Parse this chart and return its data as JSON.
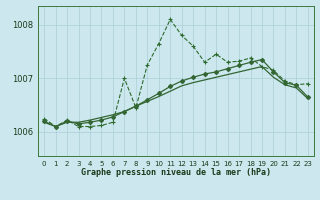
{
  "title": "Graphe pression niveau de la mer (hPa)",
  "bg_color": "#cce8ee",
  "grid_color": "#aacdd5",
  "line_color1": "#2d6a2d",
  "line_color2": "#336633",
  "xlim": [
    -0.5,
    23.5
  ],
  "ylim": [
    1005.55,
    1008.35
  ],
  "yticks": [
    1006,
    1007,
    1008
  ],
  "xticks": [
    0,
    1,
    2,
    3,
    4,
    5,
    6,
    7,
    8,
    9,
    10,
    11,
    12,
    13,
    14,
    15,
    16,
    17,
    18,
    19,
    20,
    21,
    22,
    23
  ],
  "series1_x": [
    0,
    1,
    2,
    3,
    4,
    5,
    6,
    7,
    8,
    9,
    10,
    11,
    12,
    13,
    14,
    15,
    16,
    17,
    18,
    19,
    20,
    21,
    22,
    23
  ],
  "series1_y": [
    1006.25,
    1006.1,
    1006.22,
    1006.1,
    1006.1,
    1006.12,
    1006.18,
    1007.0,
    1006.45,
    1007.25,
    1007.65,
    1008.1,
    1007.8,
    1007.6,
    1007.3,
    1007.45,
    1007.3,
    1007.32,
    1007.38,
    1007.22,
    1007.15,
    1006.95,
    1006.88,
    1006.9
  ],
  "series2_x": [
    0,
    1,
    2,
    3,
    4,
    5,
    6,
    7,
    8,
    9,
    10,
    11,
    12,
    13,
    14,
    15,
    16,
    17,
    18,
    19,
    20,
    21,
    22,
    23
  ],
  "series2_y": [
    1006.2,
    1006.1,
    1006.2,
    1006.15,
    1006.18,
    1006.22,
    1006.28,
    1006.38,
    1006.48,
    1006.6,
    1006.72,
    1006.85,
    1006.95,
    1007.02,
    1007.08,
    1007.12,
    1007.18,
    1007.24,
    1007.3,
    1007.35,
    1007.12,
    1006.92,
    1006.87,
    1006.65
  ],
  "series3_x": [
    0,
    1,
    2,
    3,
    4,
    5,
    6,
    7,
    8,
    9,
    10,
    11,
    12,
    13,
    14,
    15,
    16,
    17,
    18,
    19,
    20,
    21,
    22,
    23
  ],
  "series3_y": [
    1006.18,
    1006.1,
    1006.18,
    1006.18,
    1006.22,
    1006.27,
    1006.32,
    1006.38,
    1006.48,
    1006.57,
    1006.66,
    1006.76,
    1006.86,
    1006.92,
    1006.97,
    1007.02,
    1007.07,
    1007.12,
    1007.17,
    1007.22,
    1007.02,
    1006.88,
    1006.82,
    1006.62
  ]
}
